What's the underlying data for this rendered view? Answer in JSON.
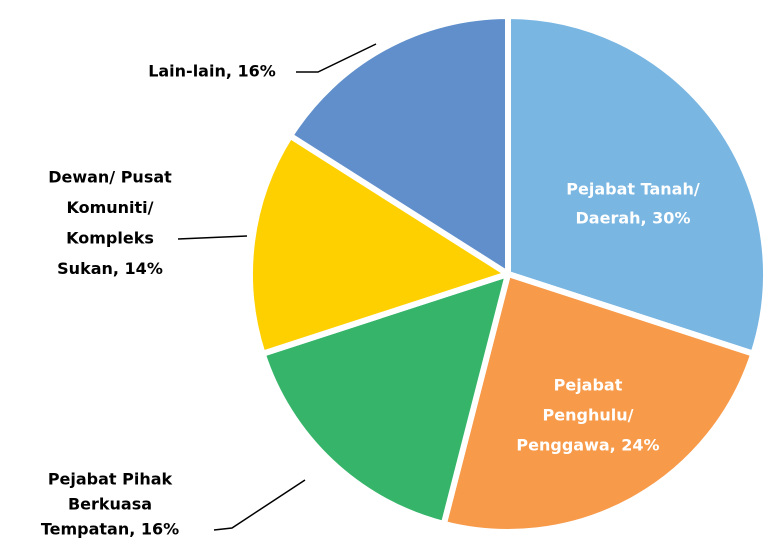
{
  "chart_data": {
    "type": "pie",
    "labels": [
      [
        "Pejabat Tanah/",
        "Daerah, 30%"
      ],
      [
        "Pejabat",
        "Penghulu/",
        "Penggawa, 24%"
      ],
      [
        "Pejabat Pihak",
        "Berkuasa",
        "Tempatan, 16%"
      ],
      [
        "Dewan/ Pusat",
        "Komuniti/",
        "Kompleks",
        "Sukan, 14%"
      ],
      [
        "Lain-lain, 16%"
      ]
    ],
    "values": [
      30,
      24,
      16,
      14,
      16
    ],
    "colors": [
      "#7ab6e2",
      "#f79a4a",
      "#36b56a",
      "#ffd000",
      "#608fcc"
    ]
  }
}
